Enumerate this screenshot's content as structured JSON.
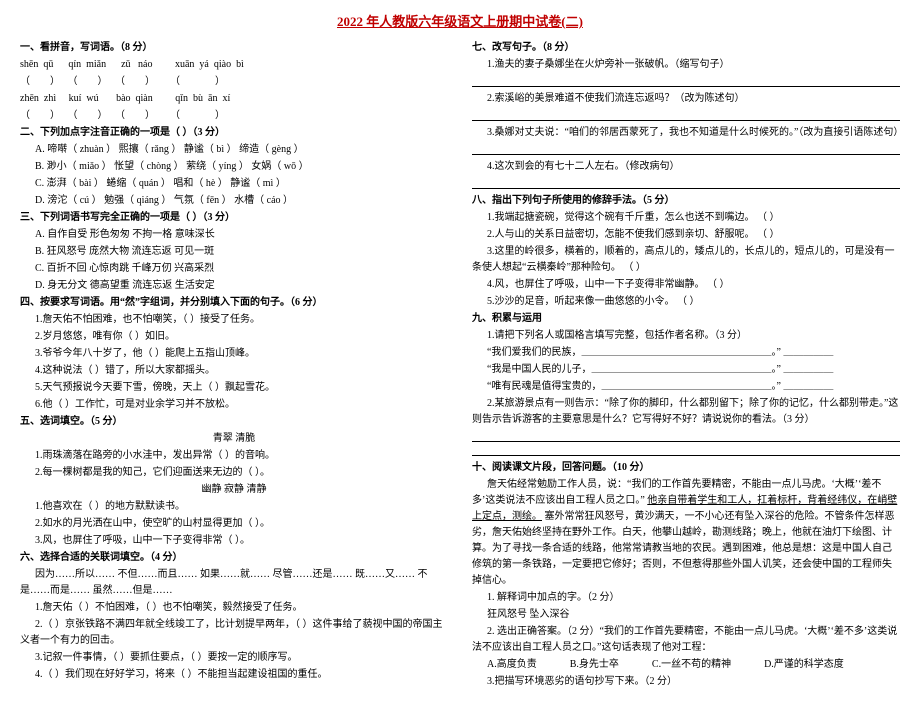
{
  "doc": {
    "title": "2022 年人教版六年级语文上册期中试卷(二)",
    "left": {
      "s1_head": "一、看拼音，写词语。（8 分）",
      "pinyin_rows": [
        "shēn  qū      qín  miǎn      zǔ   náo         xuān  yá  qiào  bì",
        "（        ）   （        ）   （        ）      （              ）",
        "zhēn  zhì     kuí  wú       bào  qiàn         qǐn  bù  ān  xí",
        "（        ）   （        ）   （        ）      （              ）"
      ],
      "s2_head": "二、下列加点字注音正确的一项是（     ）（3 分）",
      "s2_items": [
        "A. 啼啭（ zhuàn ）    熙攘（ rǎng ）    静谧（  bì  ）    缔造（ gèng ）",
        "B. 渺小（  miǎo ）    怅望（ chòng ）   萦绕（ yíng ）    女娲（  wō  ）",
        "C. 澎湃（  bài ）     蜷缩（ quán ）    唱和（  hè  ）    静谧（  mì  ）",
        "D. 滂沱（  cú ）      勉强（ qiáng ）   气氛（  fēn ）    水槽（  cáo ）"
      ],
      "s3_head": "三、下列词语书写完全正确的一项是（     ）（3 分）",
      "s3_items": [
        "A.  自作自受        形色匆匆        不拘一格        意味深长",
        "B.  狂风怒号        庞然大物        流连忘返        可见一斑",
        "C.  百折不回        心惊肉跳        千峰万仞        兴高采烈",
        "D.  身无分文        德高望重        流连忘返        生活安定"
      ],
      "s4_head": "四、按要求写词语。用“然”字组词，并分别填入下面的句子。（6 分）",
      "s4_lines": [
        "1.詹天佑不怕困难，也不怕嘲笑，（        ）接受了任务。",
        "2.岁月悠悠，唯有你（        ）如旧。",
        "3.爷爷今年八十岁了，他（        ）能爬上五指山顶峰。",
        "4.这种说法（        ）错了，所以大家都摇头。",
        "5.天气预报说今天要下雪，傍晚，天上（        ）飘起雪花。",
        "6.他（        ）工作忙，可是对业余学习并不放松。"
      ],
      "s5_head": "五、选词填空。（5 分）",
      "s5_group1": "青翠            清脆",
      "s5_lines1": [
        "1.雨珠滴落在路旁的小水洼中，发出异常（        ）的音响。",
        "2.每一棵树都是我的知己，它们迎面送来无边的（        ）。"
      ],
      "s5_group2": "幽静        寂静        清静",
      "s5_lines2": [
        "1.他喜欢在（        ）的地方默默读书。",
        "2.如水的月光洒在山中，使空旷的山村显得更加（        ）。",
        "3.风，也屏住了呼吸，山中一下子变得非常（        ）。"
      ],
      "s6_head": "六、选择合适的关联词填空。（4 分）",
      "s6_opts": "因为……所以……   不但……而且……   如果……就……   尽管……还是……   既……又……   不是……而是……   虽然……但是……",
      "s6_lines": [
        "1.詹天佑（        ）不怕困难，（        ）也不怕嘲笑，毅然接受了任务。",
        "2.（        ）京张铁路不满四年就全线竣工了，比计划提早两年，（        ）这件事给了藐视中国的帝国主义者一个有力的回击。",
        "3.记叙一件事情，（        ）要抓住要点，（        ）要按一定的顺序写。",
        "4.（        ）我们现在好好学习，将来（        ）不能担当起建设祖国的重任。"
      ]
    },
    "right": {
      "s7_head": "七、改写句子。（8 分）",
      "s7_lines": [
        "1.渔夫的妻子桑娜坐在火炉旁补一张破帆。（缩写句子）",
        "2.索溪峪的美景难道不使我们流连忘返吗？（改为陈述句）",
        "3.桑娜对丈夫说：“咱们的邻居西蒙死了，我也不知道是什么时候死的。”（改为直接引语陈述句）",
        "4.这次到会的有七十二人左右。（修改病句）"
      ],
      "s8_head": "八、指出下列句子所使用的修辞手法。（5 分）",
      "s8_lines": [
        "1.我端起搪瓷碗，觉得这个碗有千斤重，怎么也送不到嘴边。   （        ）",
        "2.人与山的关系日益密切，怎能不使我们感到亲切、舒服呢。   （        ）",
        "3.这里的岭很多，横着的，顺着的，高点儿的，矮点儿的，长点儿的，短点儿的，可是没有一条使人想起“云横秦岭”那种险句。   （        ）",
        "4.风，也屏住了呼吸，山中一下子变得非常幽静。   （        ）",
        "5.沙沙的足音，听起来像一曲悠悠的小令。   （        ）"
      ],
      "s9_head": "九、积累与运用",
      "s9_1": "1.请把下列名人或国格言填写完整，包括作者名称。（3 分）",
      "s9_1_lines": [
        "“我们爱我们的民族，＿＿＿＿＿＿＿＿＿＿＿＿＿＿＿＿＿＿＿。”  ＿＿＿＿＿",
        "“我是中国人民的儿子，＿＿＿＿＿＿＿＿＿＿＿＿＿＿＿＿＿＿。”  ＿＿＿＿＿",
        "“唯有民魂是值得宝贵的，＿＿＿＿＿＿＿＿＿＿＿＿＿＿＿＿＿。”  ＿＿＿＿＿"
      ],
      "s9_2": "2.某旅游景点有一则告示：“除了你的脚印，什么都别留下；除了你的记忆，什么都别带走。”这则告示告诉游客的主要意思是什么？它写得好不好？请说说你的看法。（3 分）",
      "s10_head": "十、阅读课文片段，回答问题。（10 分）",
      "s10_passage": "詹天佑经常勉励工作人员，说：“我们的工作首先要精密，不能由一点儿马虎。‘大概’‘差不多’这类说法不应该出自工程人员之口。”",
      "s10_passage_u": "他亲自带着学生和工人，扛着标杆，背着经纬仪，在峭壁上定点，测绘。",
      "s10_passage2": "塞外常常狂风怒号，黄沙满天，一不小心还有坠入深谷的危险。不管条件怎样恶劣，詹天佑始终坚持在野外工作。白天，他攀山越岭，勘测线路；晚上，他就在油灯下绘图、计算。为了寻找一条合适的线路，他常常请教当地的农民。遇到困难，他总是想：这是中国人自己修筑的第一条铁路，一定要把它修好；否则，不但惹得那些外国人讥笑，还会使中国的工程师失掉信心。",
      "s10_q1": "1. 解释词中加点的字。（2 分）",
      "s10_q1_words": "狂风怒号                                          坠入深谷",
      "s10_q2": "2. 选出正确答案。（2 分）“我们的工作首先要精密，不能由一点儿马虎。‘大概’‘差不多’这类说法不应该出自工程人员之口。”这句话表现了他对工程：",
      "s10_q2_opts": [
        "A.高度负责",
        "B.身先士卒",
        "C.一丝不苟的精神",
        "D.严谨的科学态度"
      ],
      "s10_q3": "3.把描写环境恶劣的语句抄写下来。（2 分）"
    }
  }
}
